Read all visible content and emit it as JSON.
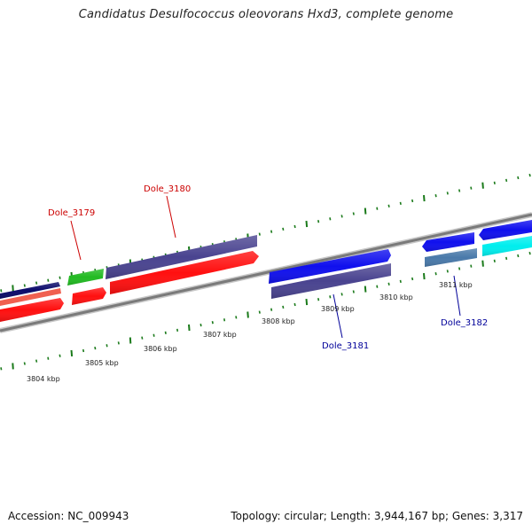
{
  "title": "Candidatus Desulfococcus oleovorans Hxd3, complete genome",
  "footer": {
    "accession": "Accession: NC_009943",
    "summary": "Topology: circular; Length: 3,944,167 bp; Genes: 3,317"
  },
  "scale_labels": [
    {
      "text": "3804 kbp",
      "kbp": 3804
    },
    {
      "text": "3805 kbp",
      "kbp": 3805
    },
    {
      "text": "3806 kbp",
      "kbp": 3806
    },
    {
      "text": "3807 kbp",
      "kbp": 3807
    },
    {
      "text": "3808 kbp",
      "kbp": 3808
    },
    {
      "text": "3809 kbp",
      "kbp": 3809
    },
    {
      "text": "3810 kbp",
      "kbp": 3810
    },
    {
      "text": "3811 kbp",
      "kbp": 3811
    }
  ],
  "gene_labels": [
    {
      "text": "Dole_3179",
      "color": "#cc0000"
    },
    {
      "text": "Dole_3180",
      "color": "#cc0000"
    },
    {
      "text": "Dole_3181",
      "color": "#000099"
    },
    {
      "text": "Dole_3182",
      "color": "#000099"
    }
  ],
  "colors": {
    "backbone": "#8a8a8a",
    "tick": "#1a7a1a",
    "red": "#ff1010",
    "slate": "#4a4490",
    "blue": "#1010ee",
    "navy": "#0a0a6a",
    "salmon": "#f06050",
    "green": "#22bb22",
    "steel": "#4a7aaa",
    "cyan": "#00eeee"
  }
}
